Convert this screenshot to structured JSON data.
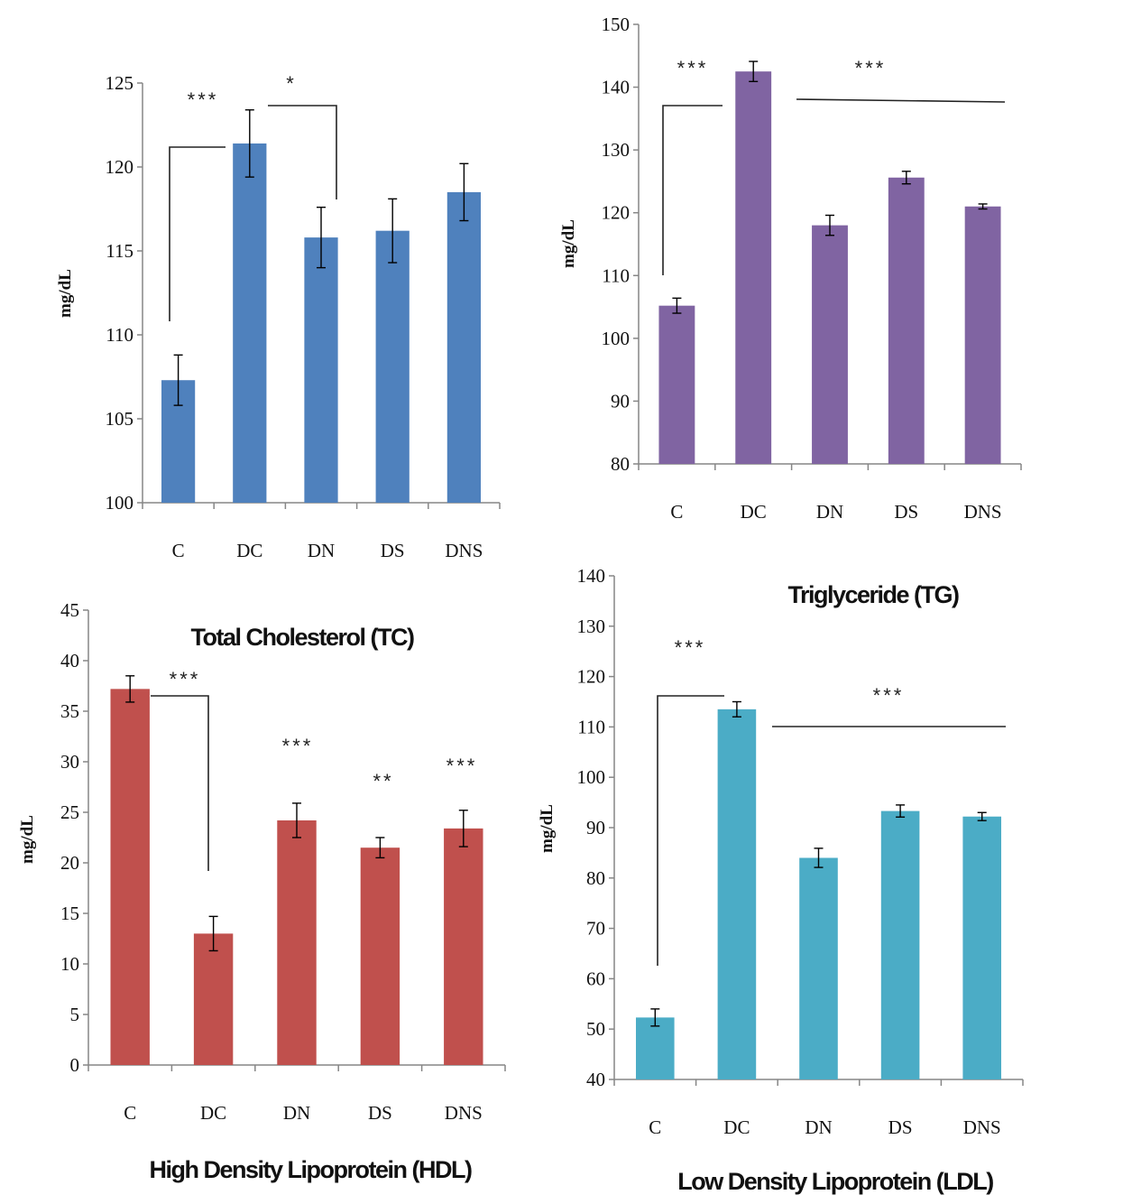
{
  "chart_data": [
    {
      "id": "tc",
      "type": "bar",
      "title": "Total Cholesterol (TC)",
      "ylabel": "mg/dL",
      "categories": [
        "C",
        "DC",
        "DN",
        "DS",
        "DNS"
      ],
      "values": [
        107.3,
        121.4,
        115.8,
        116.2,
        118.5
      ],
      "errors": [
        1.5,
        2.0,
        1.8,
        1.9,
        1.7
      ],
      "ylim": [
        100,
        125
      ],
      "yticks": [
        100,
        105,
        110,
        115,
        120,
        125
      ],
      "color": "#4F81BD",
      "significance": [
        "***",
        "*"
      ]
    },
    {
      "id": "tg",
      "type": "bar",
      "title": "Triglyceride (TG)",
      "ylabel": "mg/dL",
      "categories": [
        "C",
        "DC",
        "DN",
        "DS",
        "DNS"
      ],
      "values": [
        105.2,
        142.5,
        118.0,
        125.6,
        121.0
      ],
      "errors": [
        1.2,
        1.6,
        1.6,
        1.0,
        0.4
      ],
      "ylim": [
        80,
        150
      ],
      "yticks": [
        80,
        90,
        100,
        110,
        120,
        130,
        140,
        150
      ],
      "color": "#8064A2",
      "significance": [
        "***",
        "***"
      ]
    },
    {
      "id": "hdl",
      "type": "bar",
      "title": "High Density Lipoprotein (HDL)",
      "ylabel": "mg/dL",
      "categories": [
        "C",
        "DC",
        "DN",
        "DS",
        "DNS"
      ],
      "values": [
        37.2,
        13.0,
        24.2,
        21.5,
        23.4
      ],
      "errors": [
        1.3,
        1.7,
        1.7,
        1.0,
        1.8
      ],
      "ylim": [
        0,
        45
      ],
      "yticks": [
        0,
        5,
        10,
        15,
        20,
        25,
        30,
        35,
        40,
        45
      ],
      "color": "#C0504D",
      "significance": [
        "***",
        "***",
        "**",
        "***"
      ]
    },
    {
      "id": "ldl",
      "type": "bar",
      "title": "Low Density Lipoprotein (LDL)",
      "ylabel": "mg/dL",
      "categories": [
        "C",
        "DC",
        "DN",
        "DS",
        "DNS"
      ],
      "values": [
        52.3,
        113.5,
        84.0,
        93.3,
        92.2
      ],
      "errors": [
        1.7,
        1.5,
        1.9,
        1.2,
        0.8
      ],
      "ylim": [
        40,
        140
      ],
      "yticks": [
        40,
        50,
        60,
        70,
        80,
        90,
        100,
        110,
        120,
        130,
        140
      ],
      "color": "#4BACC6",
      "significance": [
        "***",
        "***"
      ]
    }
  ]
}
